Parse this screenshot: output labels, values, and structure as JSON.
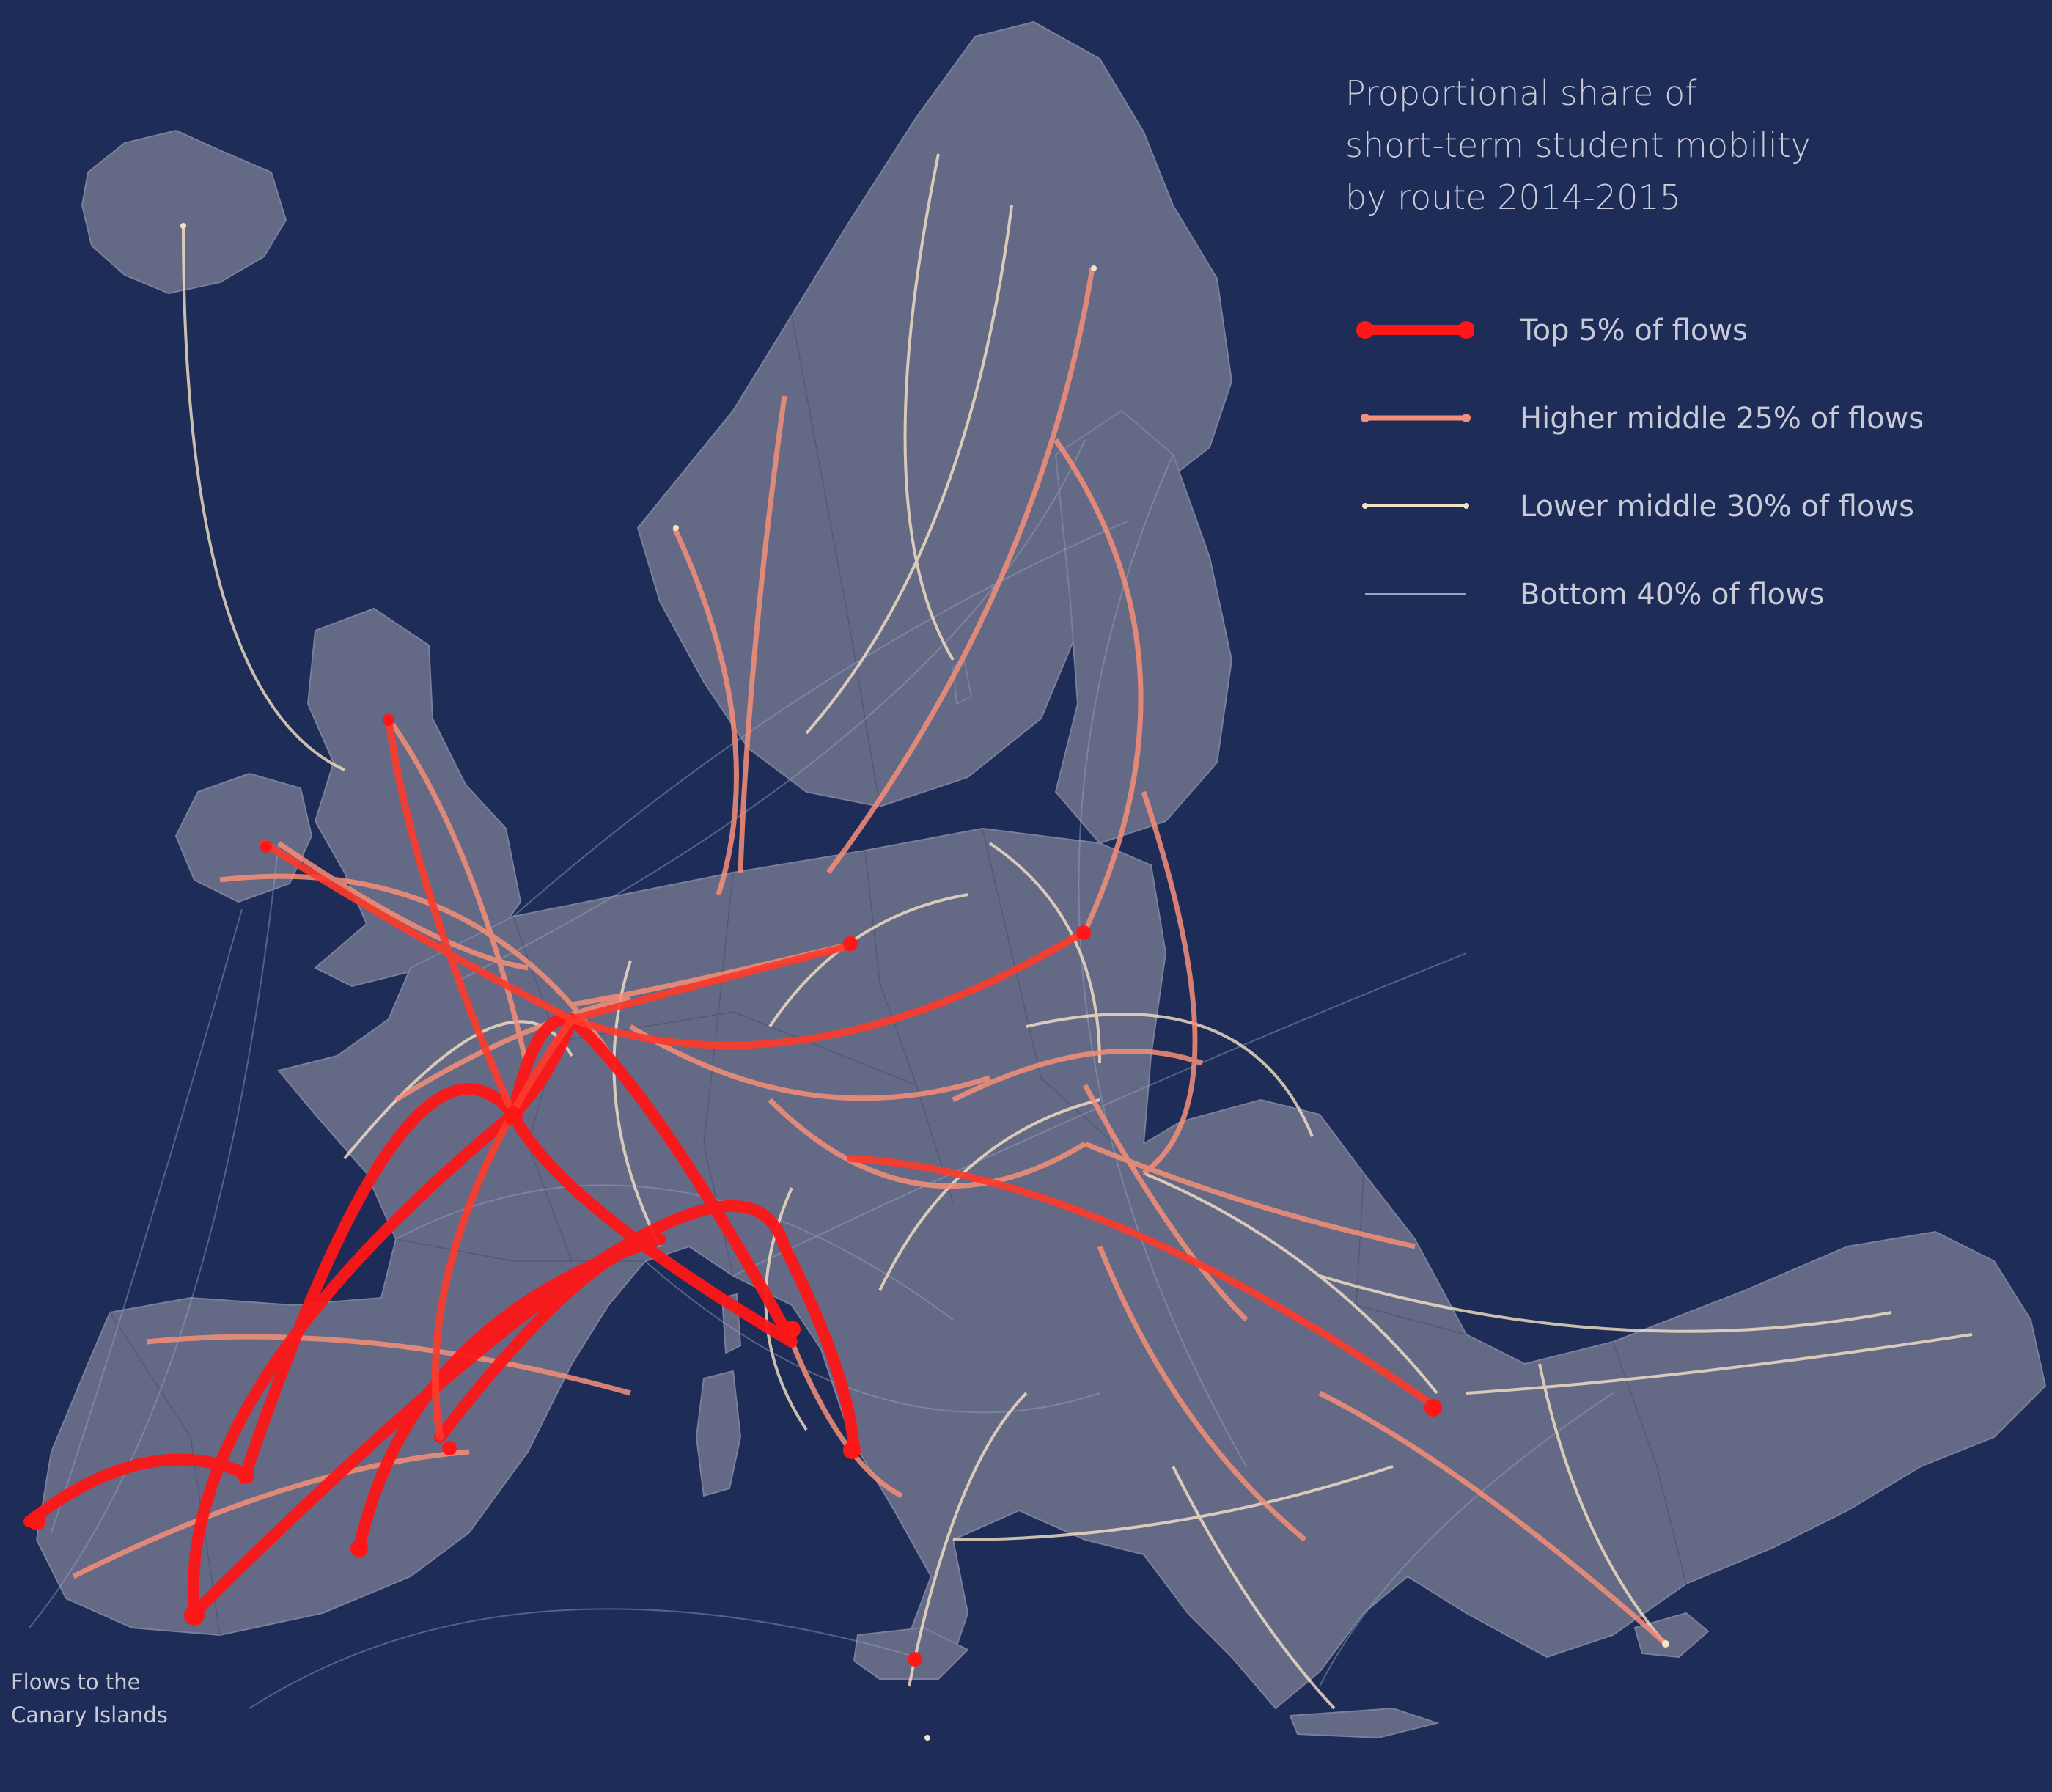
{
  "title_lines": [
    "Proportional share of",
    "short-term student mobility",
    "by route 2014-2015"
  ],
  "legend": [
    {
      "label": "Top 5% of flows",
      "color": "#ff1616"
    },
    {
      "label": "Higher middle 25% of flows",
      "color": "#f78e77"
    },
    {
      "label": "Lower middle 30% of flows",
      "color": "#f6e2c6"
    },
    {
      "label": "Bottom 40% of flows",
      "color": "#9aa3c0"
    }
  ],
  "annotation_lines": [
    "Flows to the",
    "Canary Islands"
  ],
  "colors": {
    "background": "#1e2d58",
    "land": "#646a86",
    "text": "#c9cad6"
  }
}
